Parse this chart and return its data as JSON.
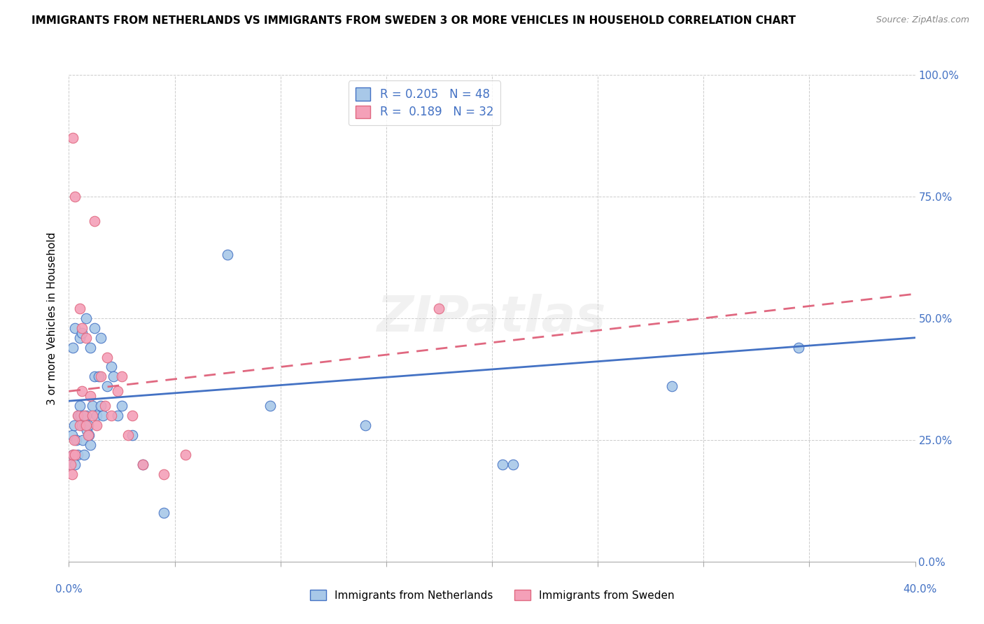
{
  "title": "IMMIGRANTS FROM NETHERLANDS VS IMMIGRANTS FROM SWEDEN 3 OR MORE VEHICLES IN HOUSEHOLD CORRELATION CHART",
  "source": "Source: ZipAtlas.com",
  "ylabel": "3 or more Vehicles in Household",
  "ytick_values": [
    0,
    25,
    50,
    75,
    100
  ],
  "xlim": [
    0,
    40
  ],
  "ylim": [
    0,
    100
  ],
  "legend1_label": "Immigrants from Netherlands",
  "legend2_label": "Immigrants from Sweden",
  "r1": 0.205,
  "n1": 48,
  "r2": 0.189,
  "n2": 32,
  "color_nl": "#a8c8e8",
  "color_sw": "#f4a0b8",
  "color_nl_line": "#4472c4",
  "color_sw_line": "#e06880",
  "watermark": "ZIPatlas",
  "nl_x": [
    0.1,
    0.15,
    0.2,
    0.25,
    0.3,
    0.35,
    0.4,
    0.45,
    0.5,
    0.55,
    0.6,
    0.65,
    0.7,
    0.75,
    0.8,
    0.85,
    0.9,
    0.95,
    1.0,
    1.1,
    1.2,
    1.3,
    1.4,
    1.5,
    1.6,
    1.8,
    2.0,
    2.1,
    2.3,
    2.5,
    3.0,
    3.5,
    4.5,
    7.5,
    9.5,
    14.0,
    20.5,
    21.0,
    0.2,
    0.3,
    0.5,
    0.6,
    0.8,
    1.0,
    1.2,
    1.5,
    28.5,
    34.5
  ],
  "nl_y": [
    20,
    26,
    22,
    28,
    20,
    25,
    22,
    30,
    32,
    30,
    28,
    25,
    22,
    28,
    30,
    27,
    28,
    26,
    24,
    32,
    38,
    30,
    38,
    32,
    30,
    36,
    40,
    38,
    30,
    32,
    26,
    20,
    10,
    63,
    32,
    28,
    20,
    20,
    44,
    48,
    46,
    47,
    50,
    44,
    48,
    46,
    36,
    44
  ],
  "sw_x": [
    0.1,
    0.15,
    0.2,
    0.25,
    0.3,
    0.4,
    0.5,
    0.6,
    0.7,
    0.8,
    0.9,
    1.0,
    1.1,
    1.3,
    1.5,
    1.7,
    2.0,
    2.3,
    2.8,
    3.5,
    4.5,
    5.5,
    17.5,
    0.2,
    0.3,
    0.5,
    0.6,
    0.8,
    1.2,
    1.8,
    2.5,
    3.0
  ],
  "sw_y": [
    20,
    18,
    22,
    25,
    22,
    30,
    28,
    35,
    30,
    28,
    26,
    34,
    30,
    28,
    38,
    32,
    30,
    35,
    26,
    20,
    18,
    22,
    52,
    87,
    75,
    52,
    48,
    46,
    70,
    42,
    38,
    30
  ],
  "nl_line_x": [
    0,
    40
  ],
  "nl_line_y": [
    33.0,
    46.0
  ],
  "sw_line_x": [
    0,
    40
  ],
  "sw_line_y": [
    35.0,
    55.0
  ]
}
